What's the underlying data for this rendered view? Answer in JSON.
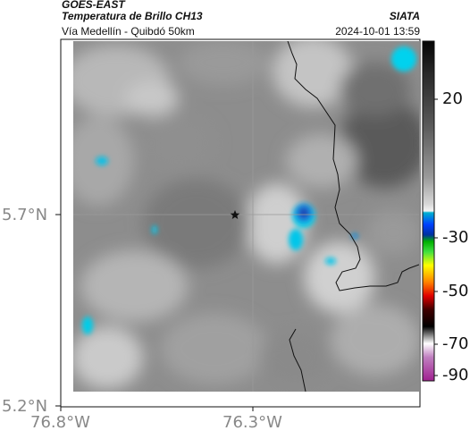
{
  "header": {
    "source": "GOES-EAST",
    "product": "Temperatura de Brillo CH13",
    "region": "Vía Medellín - Quibdó 50km",
    "organization": "SIATA",
    "timestamp": "2024-10-01 13:59"
  },
  "axes": {
    "lat_labels": [
      "5.7°N",
      "5.2°N"
    ],
    "lon_labels": [
      "76.8°W",
      "76.3°W"
    ]
  },
  "colorbar": {
    "ticks": [
      "20",
      "-30",
      "-50",
      "-70",
      "-90"
    ],
    "units": ""
  },
  "map": {
    "marker": "star-icon",
    "colors": {
      "cold_cloud": "#00c8e8",
      "cloud_core": "#1a2a9a",
      "border_line": "#111111",
      "grid_line": "#9a9a9a"
    }
  }
}
